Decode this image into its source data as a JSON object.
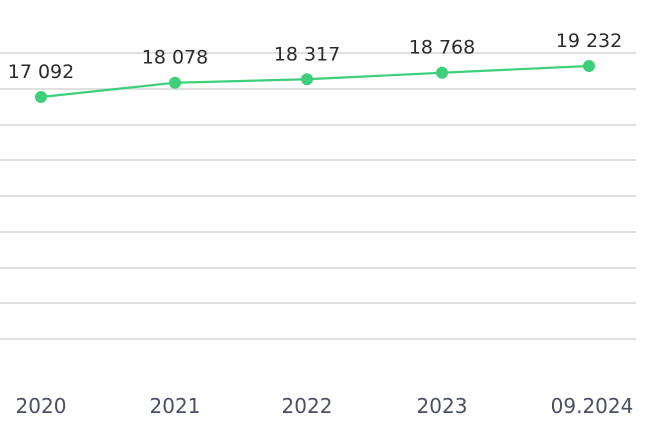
{
  "chart_data": {
    "type": "line",
    "title": "",
    "xlabel": "",
    "ylabel": "",
    "categories": [
      "2020",
      "2021",
      "2022",
      "2023",
      "09.2024"
    ],
    "series": [
      {
        "values": [
          17092,
          18078,
          18317,
          18768,
          19232
        ],
        "value_labels": [
          "17 092",
          "18 078",
          "18 317",
          "18 768",
          "19 232"
        ],
        "color": "#3ecf7a"
      }
    ],
    "grid": true,
    "legend": "none"
  }
}
